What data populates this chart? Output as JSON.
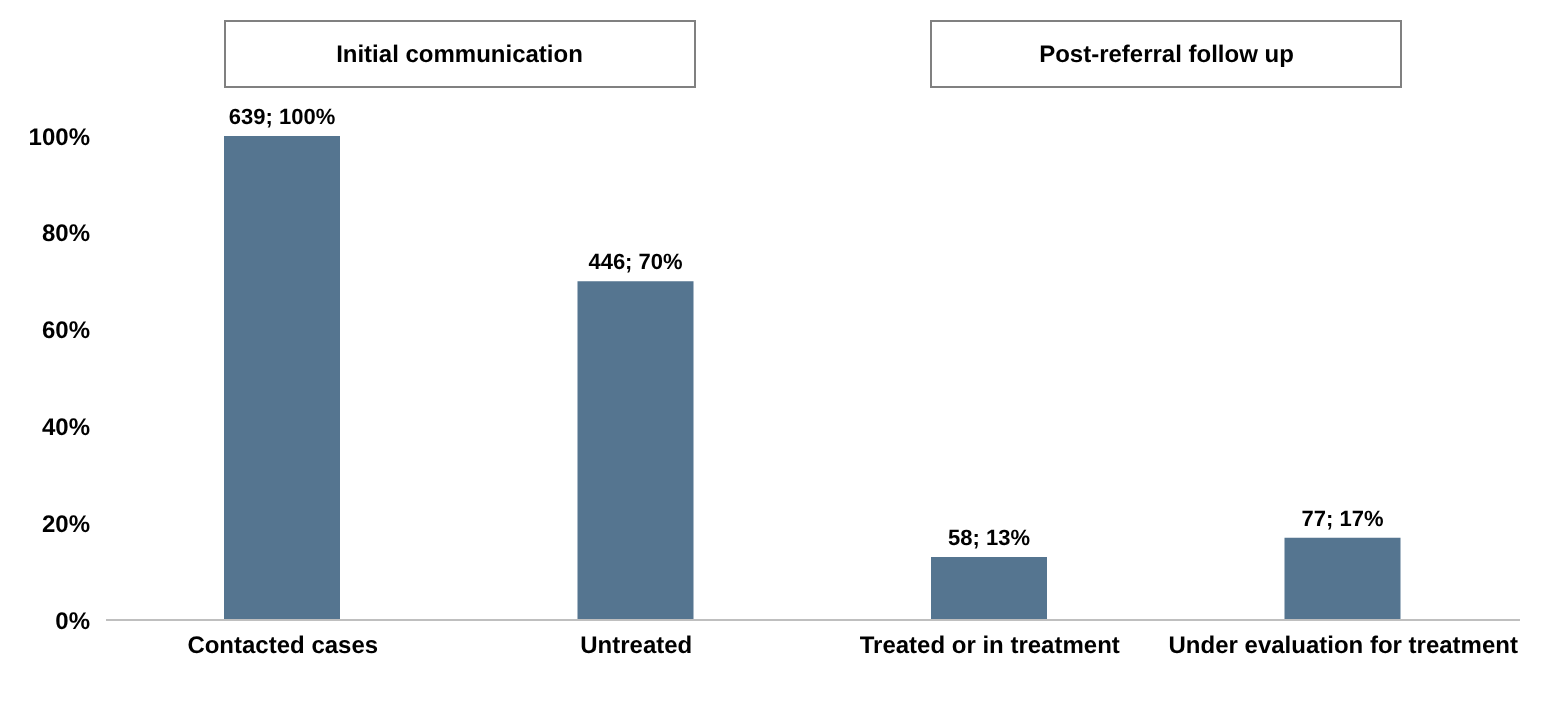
{
  "chart_data": {
    "type": "bar",
    "categories": [
      "Contacted cases",
      "Untreated",
      "Treated or in treatment",
      "Under evaluation for treatment"
    ],
    "values": [
      100,
      70,
      13,
      17
    ],
    "value_labels": [
      "639; 100%",
      "446; 70%",
      "58; 13%",
      "77; 17%"
    ],
    "color": "#557590",
    "ylim": [
      0,
      100
    ],
    "yticks": [
      {
        "value": 0,
        "label": "0%"
      },
      {
        "value": 20,
        "label": "20%"
      },
      {
        "value": 40,
        "label": "40%"
      },
      {
        "value": 60,
        "label": "60%"
      },
      {
        "value": 80,
        "label": "80%"
      },
      {
        "value": 100,
        "label": "100%"
      }
    ],
    "annotations": [
      "Initial communication",
      "Post-referral follow up"
    ],
    "grid": false
  }
}
